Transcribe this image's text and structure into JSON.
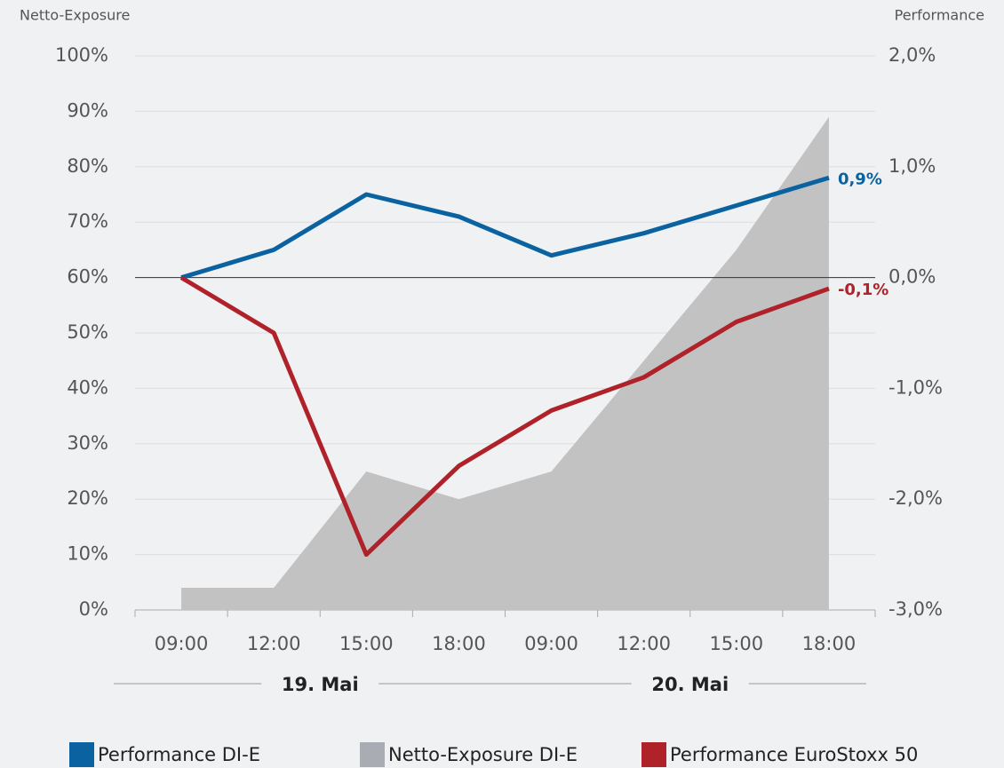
{
  "chart_data": {
    "type": "line",
    "y_axis_title": "Netto-Exposure",
    "y2_axis_title": "Performance",
    "categories": [
      "09:00",
      "12:00",
      "15:00",
      "18:00",
      "09:00",
      "12:00",
      "15:00",
      "18:00"
    ],
    "group_labels": [
      "19. Mai",
      "20. Mai"
    ],
    "series": [
      {
        "name": "Performance DI-E",
        "color": "#0a63a0",
        "axis": "y2",
        "style": "line",
        "values": [
          0.0,
          0.25,
          0.75,
          0.55,
          0.2,
          0.4,
          0.65,
          0.9
        ],
        "value_labels": [
          null,
          null,
          null,
          null,
          null,
          null,
          null,
          "0,9%"
        ]
      },
      {
        "name": "Netto-Exposure DI-E",
        "color": "#c2c2c2",
        "legend_color": "#a9adb3",
        "axis": "y",
        "style": "area",
        "values": [
          4,
          4,
          25,
          20,
          25,
          45,
          65,
          89
        ]
      },
      {
        "name": "Performance EuroStoxx 50",
        "color": "#b0222a",
        "axis": "y2",
        "style": "line",
        "values": [
          0.0,
          -0.5,
          -2.5,
          -1.7,
          -1.2,
          -0.9,
          -0.4,
          -0.1
        ],
        "value_labels": [
          null,
          null,
          null,
          null,
          null,
          null,
          null,
          "-0,1%"
        ]
      }
    ],
    "ylim": [
      0,
      100
    ],
    "yticks": [
      {
        "value": 0,
        "label": "0%"
      },
      {
        "value": 10,
        "label": "10%"
      },
      {
        "value": 20,
        "label": "20%"
      },
      {
        "value": 30,
        "label": "30%"
      },
      {
        "value": 40,
        "label": "40%"
      },
      {
        "value": 50,
        "label": "50%"
      },
      {
        "value": 60,
        "label": "60%"
      },
      {
        "value": 70,
        "label": "70%"
      },
      {
        "value": 80,
        "label": "80%"
      },
      {
        "value": 90,
        "label": "90%"
      },
      {
        "value": 100,
        "label": "100%"
      }
    ],
    "y2lim": [
      -3,
      2
    ],
    "y2ticks": [
      {
        "value": -3,
        "label": "-3,0%"
      },
      {
        "value": -2,
        "label": "-2,0%"
      },
      {
        "value": -1,
        "label": "-1,0%"
      },
      {
        "value": 0,
        "label": "0,0%"
      },
      {
        "value": 1,
        "label": "1,0%"
      },
      {
        "value": 2,
        "label": "2,0%"
      }
    ],
    "grid": true,
    "legend": "bottom"
  }
}
